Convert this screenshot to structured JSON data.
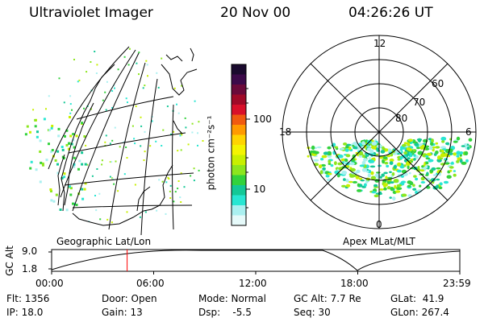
{
  "header": {
    "instrument": "Ultraviolet Imager",
    "date": "20 Nov 00",
    "time": "04:26:26 UT"
  },
  "colorbar": {
    "label": "photon cm⁻²s⁻¹",
    "ticks": [
      "100",
      "10"
    ],
    "colors": [
      "#1a0a2e",
      "#3c0a4a",
      "#6b0a3a",
      "#a00a28",
      "#d9102a",
      "#f05a10",
      "#ff9a00",
      "#ffd400",
      "#f4f400",
      "#c8f000",
      "#8ce61e",
      "#32d23c",
      "#14c896",
      "#28e6d2",
      "#aaf0f0",
      "#e6fafa"
    ]
  },
  "left_map": {
    "caption": "Geographic Lat/Lon"
  },
  "right_map": {
    "caption": "Apex MLat/MLT",
    "mlt_labels": [
      "12",
      "18",
      "6",
      "0"
    ],
    "lat_labels": [
      "60",
      "70",
      "80"
    ]
  },
  "timeline": {
    "axis_label": "GC Alt",
    "y_labels": [
      "9.0",
      "1.8"
    ],
    "x_labels": [
      "00:00",
      "06:00",
      "12:00",
      "18:00",
      "23:59"
    ],
    "marker_color": "#ff0000",
    "marker_fraction": 0.185
  },
  "info": {
    "flt": "Flt: 1356",
    "ip": "IP: 18.0",
    "door": "Door: Open",
    "gain": "Gain: 13",
    "mode": "Mode: Normal",
    "dsp": "Dsp:    -5.5",
    "gc_alt": "GC Alt: 7.7 Re",
    "seq": "Seq: 30",
    "glat": "GLat:  41.9",
    "glon": "GLon: 267.4"
  }
}
